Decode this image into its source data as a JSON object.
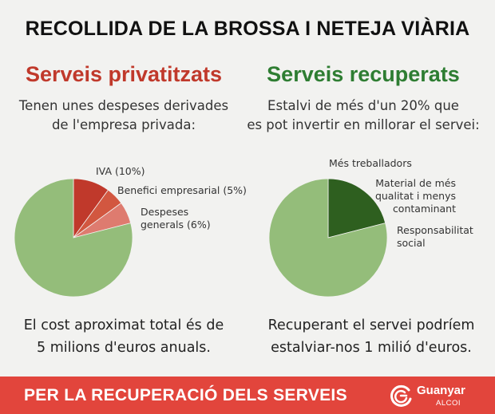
{
  "title": "RECOLLIDA DE LA BROSSA I NETEJA VIÀRIA",
  "left": {
    "heading": "Serveis privatitzats",
    "description": "Tenen unes despeses derivades\nde l'empresa privada:",
    "bottom_text": "El cost aproximat total és de\n5 milions d'euros anuals."
  },
  "right": {
    "heading": "Serveis recuperats",
    "description": "Estalvi de més d'un 20% que\nes pot invertir en millorar el servei:",
    "bottom_text": "Recuperant el servei podríem\nestalviar-nos 1 milió d'euros."
  },
  "banner": {
    "text": "PER LA RECUPERACIÓ DELS SERVEIS",
    "logo_name": "Guanyar",
    "logo_sub": "ALCOI"
  },
  "colors": {
    "red_heading": "#c0392b",
    "green_heading": "#2e7d32",
    "banner": "#e2453c",
    "pie_base": "#94bd7a"
  },
  "chart_data": [
    {
      "type": "pie",
      "title": "Serveis privatitzats",
      "slices": [
        {
          "label": "IVA (10%)",
          "value": 10,
          "color": "#c0392b"
        },
        {
          "label": "Benefici empresarial (5%)",
          "value": 5,
          "color": "#d25740"
        },
        {
          "label": "Despeses\ngenerals (6%)",
          "value": 6,
          "color": "#de7b6f"
        },
        {
          "label": "",
          "value": 79,
          "color": "#94bd7a"
        }
      ]
    },
    {
      "type": "pie",
      "title": "Serveis recuperats",
      "slices": [
        {
          "label": "Més treballadors",
          "value": 21,
          "color": "#2e5f1f"
        },
        {
          "label": "",
          "value": 79,
          "color": "#94bd7a"
        }
      ],
      "annotations": [
        "Més treballadors",
        "Material de més\nqualitat i menys\ncontaminant",
        "Responsabilitat\nsocial"
      ]
    }
  ]
}
